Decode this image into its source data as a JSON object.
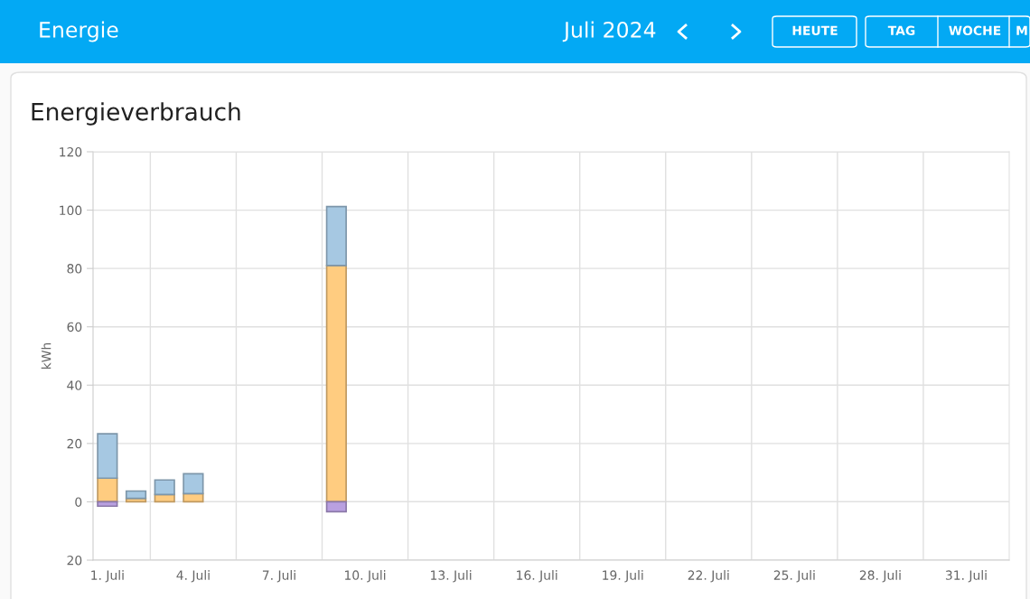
{
  "chart_data": {
    "type": "bar",
    "title": "Energieverbrauch",
    "ylabel": "kWh",
    "annotations": [
      "Energie",
      "Juli 2024",
      "HEUTE",
      "TAG",
      "WOCHE",
      "M"
    ],
    "categories": [
      "1. Juli",
      null,
      null,
      "4. Juli",
      null,
      null,
      "7. Juli",
      null,
      null,
      "10. Juli",
      null,
      null,
      "13. Juli",
      null,
      null,
      "16. Juli",
      null,
      null,
      "19. Juli",
      null,
      null,
      "22. Juli",
      null,
      null,
      "25. Juli",
      null,
      null,
      "28. Juli",
      null,
      null,
      "31. Juli",
      null
    ],
    "stacked": true,
    "series": [
      {
        "color": "#ffcc80",
        "values": [
          8.1,
          1.2,
          2.5,
          2.8,
          null,
          null,
          null,
          null,
          81,
          null,
          null,
          null,
          null,
          null,
          null,
          null,
          null,
          null,
          null,
          null,
          null,
          null,
          null,
          null,
          null,
          null,
          null,
          null,
          null,
          null,
          null,
          null
        ]
      },
      {
        "color": "#a6c8e2",
        "values": [
          15.2,
          2.5,
          5,
          6.8,
          null,
          null,
          null,
          null,
          20.2,
          null,
          null,
          null,
          null,
          null,
          null,
          null,
          null,
          null,
          null,
          null,
          null,
          null,
          null,
          null,
          null,
          null,
          null,
          null,
          null,
          null,
          null,
          null
        ]
      },
      {
        "color": "#b9a0e0",
        "values": [
          -1.5,
          null,
          null,
          null,
          null,
          null,
          null,
          null,
          -3.4,
          null,
          null,
          null,
          null,
          null,
          null,
          null,
          null,
          null,
          null,
          null,
          null,
          null,
          null,
          null,
          null,
          null,
          null,
          null,
          null,
          null,
          null,
          null
        ]
      }
    ],
    "ylim": [
      -20,
      120
    ],
    "yticks": [
      {
        "value": -20,
        "label": "20"
      },
      0,
      20,
      40,
      60,
      80,
      100,
      120
    ],
    "grid": true
  }
}
